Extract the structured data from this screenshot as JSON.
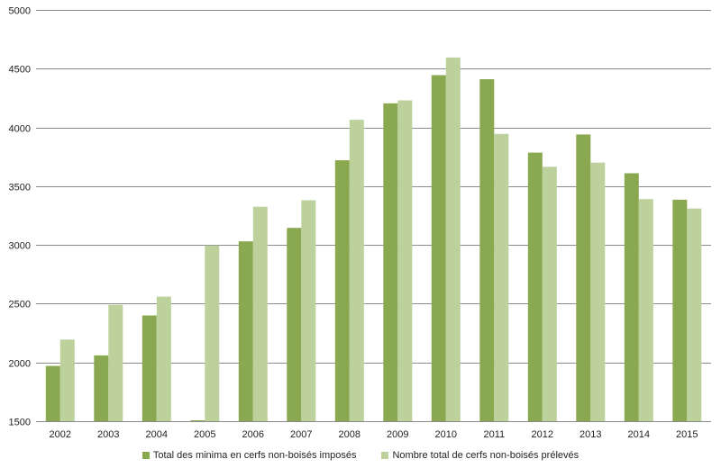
{
  "chart_data": {
    "type": "bar",
    "title": "",
    "xlabel": "",
    "ylabel": "",
    "categories": [
      "2002",
      "2003",
      "2004",
      "2005",
      "2006",
      "2007",
      "2008",
      "2009",
      "2010",
      "2011",
      "2012",
      "2013",
      "2014",
      "2015"
    ],
    "series": [
      {
        "name": "Total des minima  en cerfs non-boisés imposés",
        "color": "#8aa84f",
        "values": [
          1970,
          2060,
          2400,
          1495,
          3030,
          3145,
          3720,
          4205,
          4445,
          4410,
          3785,
          3940,
          3610,
          3385
        ]
      },
      {
        "name": "Nombre total de cerfs non-boisés prélevés",
        "color": "#bdd19c",
        "values": [
          2195,
          2490,
          2560,
          2995,
          3325,
          3380,
          4065,
          4230,
          4595,
          3945,
          3665,
          3700,
          3390,
          3310
        ]
      }
    ],
    "ylim": [
      1500,
      5000
    ],
    "yticks": [
      1500,
      2000,
      2500,
      3000,
      3500,
      4000,
      4500,
      5000
    ],
    "grid": true,
    "legend": "bottom"
  }
}
